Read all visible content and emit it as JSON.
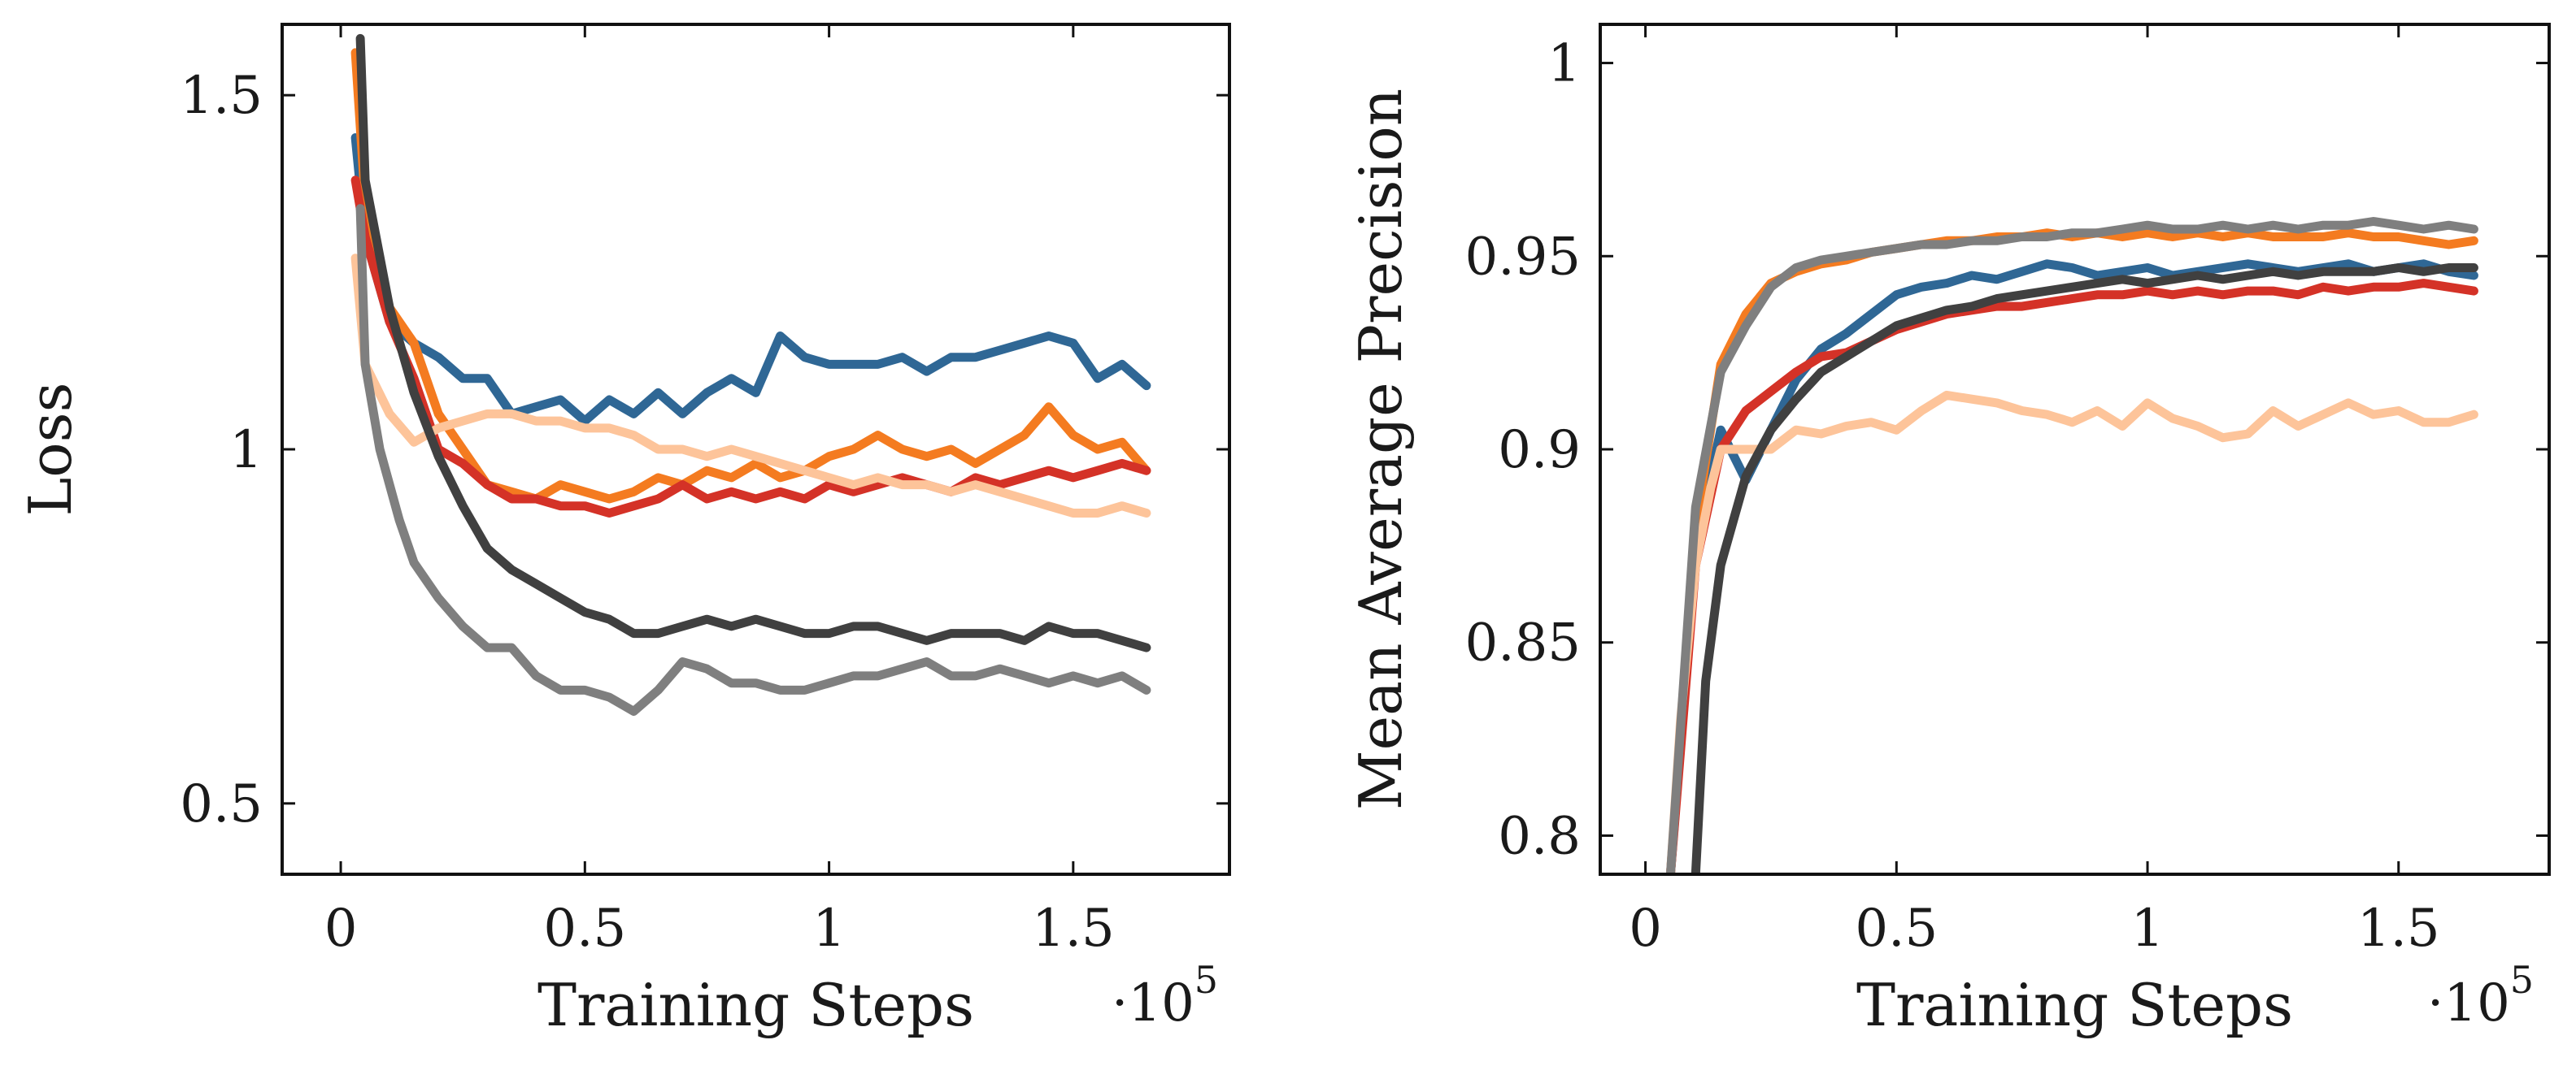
{
  "chart_data": [
    {
      "type": "line",
      "title": "",
      "xlabel": "Training Steps",
      "ylabel": "Loss",
      "x_exponent_label": "·10",
      "x_exponent_power": "5",
      "xlim": [
        -0.12,
        1.82
      ],
      "ylim": [
        0.4,
        1.6
      ],
      "xticks": [
        0,
        0.5,
        1,
        1.5
      ],
      "xtick_labels": [
        "0",
        "0.5",
        "1",
        "1.5"
      ],
      "yticks": [
        0.5,
        1,
        1.5
      ],
      "ytick_labels": [
        "0.5",
        "1",
        "1.5"
      ],
      "grid": false,
      "series": [
        {
          "color": "#2f6795",
          "x": [
            0.03,
            0.05,
            0.1,
            0.15,
            0.2,
            0.25,
            0.3,
            0.35,
            0.4,
            0.45,
            0.5,
            0.55,
            0.6,
            0.65,
            0.7,
            0.75,
            0.8,
            0.85,
            0.9,
            0.95,
            1.0,
            1.05,
            1.1,
            1.15,
            1.2,
            1.25,
            1.3,
            1.35,
            1.4,
            1.45,
            1.5,
            1.55,
            1.6,
            1.65
          ],
          "y": [
            1.44,
            1.3,
            1.18,
            1.15,
            1.13,
            1.1,
            1.1,
            1.05,
            1.06,
            1.07,
            1.04,
            1.07,
            1.05,
            1.08,
            1.05,
            1.08,
            1.1,
            1.08,
            1.16,
            1.13,
            1.12,
            1.12,
            1.12,
            1.13,
            1.11,
            1.13,
            1.13,
            1.14,
            1.15,
            1.16,
            1.15,
            1.1,
            1.12,
            1.09
          ]
        },
        {
          "color": "#f47b20",
          "x": [
            0.03,
            0.05,
            0.1,
            0.15,
            0.2,
            0.25,
            0.3,
            0.35,
            0.4,
            0.45,
            0.5,
            0.55,
            0.6,
            0.65,
            0.7,
            0.75,
            0.8,
            0.85,
            0.9,
            0.95,
            1.0,
            1.05,
            1.1,
            1.15,
            1.2,
            1.25,
            1.3,
            1.35,
            1.4,
            1.45,
            1.5,
            1.55,
            1.6,
            1.65
          ],
          "y": [
            1.56,
            1.35,
            1.2,
            1.15,
            1.05,
            1.0,
            0.95,
            0.94,
            0.93,
            0.95,
            0.94,
            0.93,
            0.94,
            0.96,
            0.95,
            0.97,
            0.96,
            0.98,
            0.96,
            0.97,
            0.99,
            1.0,
            1.02,
            1.0,
            0.99,
            1.0,
            0.98,
            1.0,
            1.02,
            1.06,
            1.02,
            1.0,
            1.01,
            0.97
          ]
        },
        {
          "color": "#d43227",
          "x": [
            0.03,
            0.05,
            0.1,
            0.15,
            0.2,
            0.25,
            0.3,
            0.35,
            0.4,
            0.45,
            0.5,
            0.55,
            0.6,
            0.65,
            0.7,
            0.75,
            0.8,
            0.85,
            0.9,
            0.95,
            1.0,
            1.05,
            1.1,
            1.15,
            1.2,
            1.25,
            1.3,
            1.35,
            1.4,
            1.45,
            1.5,
            1.55,
            1.6,
            1.65
          ],
          "y": [
            1.38,
            1.3,
            1.18,
            1.1,
            1.0,
            0.98,
            0.95,
            0.93,
            0.93,
            0.92,
            0.92,
            0.91,
            0.92,
            0.93,
            0.95,
            0.93,
            0.94,
            0.93,
            0.94,
            0.93,
            0.95,
            0.94,
            0.95,
            0.96,
            0.95,
            0.94,
            0.96,
            0.95,
            0.96,
            0.97,
            0.96,
            0.97,
            0.98,
            0.97
          ]
        },
        {
          "color": "#fdc49a",
          "x": [
            0.03,
            0.05,
            0.1,
            0.15,
            0.2,
            0.25,
            0.3,
            0.35,
            0.4,
            0.45,
            0.5,
            0.55,
            0.6,
            0.65,
            0.7,
            0.75,
            0.8,
            0.85,
            0.9,
            0.95,
            1.0,
            1.05,
            1.1,
            1.15,
            1.2,
            1.25,
            1.3,
            1.35,
            1.4,
            1.45,
            1.5,
            1.55,
            1.6,
            1.65
          ],
          "y": [
            1.27,
            1.12,
            1.05,
            1.01,
            1.03,
            1.04,
            1.05,
            1.05,
            1.04,
            1.04,
            1.03,
            1.03,
            1.02,
            1.0,
            1.0,
            0.99,
            1.0,
            0.99,
            0.98,
            0.97,
            0.96,
            0.95,
            0.96,
            0.95,
            0.95,
            0.94,
            0.95,
            0.94,
            0.93,
            0.92,
            0.91,
            0.91,
            0.92,
            0.91
          ]
        },
        {
          "color": "#404040",
          "x": [
            0.04,
            0.05,
            0.1,
            0.15,
            0.2,
            0.25,
            0.3,
            0.35,
            0.4,
            0.45,
            0.5,
            0.55,
            0.6,
            0.65,
            0.7,
            0.75,
            0.8,
            0.85,
            0.9,
            0.95,
            1.0,
            1.05,
            1.1,
            1.15,
            1.2,
            1.25,
            1.3,
            1.35,
            1.4,
            1.45,
            1.5,
            1.55,
            1.6,
            1.65
          ],
          "y": [
            1.58,
            1.38,
            1.2,
            1.08,
            0.99,
            0.92,
            0.86,
            0.83,
            0.81,
            0.79,
            0.77,
            0.76,
            0.74,
            0.74,
            0.75,
            0.76,
            0.75,
            0.76,
            0.75,
            0.74,
            0.74,
            0.75,
            0.75,
            0.74,
            0.73,
            0.74,
            0.74,
            0.74,
            0.73,
            0.75,
            0.74,
            0.74,
            0.73,
            0.72
          ]
        },
        {
          "color": "#7f7f7f",
          "x": [
            0.04,
            0.05,
            0.08,
            0.12,
            0.15,
            0.2,
            0.25,
            0.3,
            0.35,
            0.4,
            0.45,
            0.5,
            0.55,
            0.6,
            0.65,
            0.7,
            0.75,
            0.8,
            0.85,
            0.9,
            0.95,
            1.0,
            1.05,
            1.1,
            1.15,
            1.2,
            1.25,
            1.3,
            1.35,
            1.4,
            1.45,
            1.5,
            1.55,
            1.6,
            1.65
          ],
          "y": [
            1.34,
            1.12,
            1.0,
            0.9,
            0.84,
            0.79,
            0.75,
            0.72,
            0.72,
            0.68,
            0.66,
            0.66,
            0.65,
            0.63,
            0.66,
            0.7,
            0.69,
            0.67,
            0.67,
            0.66,
            0.66,
            0.67,
            0.68,
            0.68,
            0.69,
            0.7,
            0.68,
            0.68,
            0.69,
            0.68,
            0.67,
            0.68,
            0.67,
            0.68,
            0.66
          ]
        }
      ]
    },
    {
      "type": "line",
      "title": "",
      "xlabel": "Training Steps",
      "ylabel": "Mean Average Precision",
      "x_exponent_label": "·10",
      "x_exponent_power": "5",
      "xlim": [
        -0.09,
        1.8
      ],
      "ylim": [
        0.79,
        1.01
      ],
      "xticks": [
        0,
        0.5,
        1,
        1.5
      ],
      "xtick_labels": [
        "0",
        "0.5",
        "1",
        "1.5"
      ],
      "yticks": [
        0.8,
        0.85,
        0.9,
        0.95,
        1.0
      ],
      "ytick_labels": [
        "0.8",
        "0.85",
        "0.9",
        "0.95",
        "1"
      ],
      "grid": false,
      "series": [
        {
          "color": "#2f6795",
          "x": [
            0.05,
            0.1,
            0.15,
            0.2,
            0.25,
            0.3,
            0.35,
            0.4,
            0.45,
            0.5,
            0.55,
            0.6,
            0.65,
            0.7,
            0.75,
            0.8,
            0.85,
            0.9,
            0.95,
            1.0,
            1.05,
            1.1,
            1.15,
            1.2,
            1.25,
            1.3,
            1.35,
            1.4,
            1.45,
            1.5,
            1.55,
            1.6,
            1.65
          ],
          "y": [
            0.79,
            0.875,
            0.905,
            0.892,
            0.905,
            0.918,
            0.926,
            0.93,
            0.935,
            0.94,
            0.942,
            0.943,
            0.945,
            0.944,
            0.946,
            0.948,
            0.947,
            0.945,
            0.946,
            0.947,
            0.945,
            0.946,
            0.947,
            0.948,
            0.947,
            0.946,
            0.947,
            0.948,
            0.946,
            0.947,
            0.948,
            0.946,
            0.945
          ]
        },
        {
          "color": "#f47b20",
          "x": [
            0.05,
            0.1,
            0.15,
            0.2,
            0.25,
            0.3,
            0.35,
            0.4,
            0.45,
            0.5,
            0.55,
            0.6,
            0.65,
            0.7,
            0.75,
            0.8,
            0.85,
            0.9,
            0.95,
            1.0,
            1.05,
            1.1,
            1.15,
            1.2,
            1.25,
            1.3,
            1.35,
            1.4,
            1.45,
            1.5,
            1.55,
            1.6,
            1.65
          ],
          "y": [
            0.79,
            0.88,
            0.922,
            0.935,
            0.943,
            0.946,
            0.948,
            0.949,
            0.951,
            0.952,
            0.953,
            0.954,
            0.954,
            0.955,
            0.955,
            0.956,
            0.955,
            0.956,
            0.955,
            0.956,
            0.955,
            0.956,
            0.955,
            0.956,
            0.955,
            0.955,
            0.955,
            0.956,
            0.955,
            0.955,
            0.954,
            0.953,
            0.954
          ]
        },
        {
          "color": "#d43227",
          "x": [
            0.05,
            0.1,
            0.15,
            0.2,
            0.25,
            0.3,
            0.35,
            0.4,
            0.45,
            0.5,
            0.55,
            0.6,
            0.65,
            0.7,
            0.75,
            0.8,
            0.85,
            0.9,
            0.95,
            1.0,
            1.05,
            1.1,
            1.15,
            1.2,
            1.25,
            1.3,
            1.35,
            1.4,
            1.45,
            1.5,
            1.55,
            1.6,
            1.65
          ],
          "y": [
            0.79,
            0.87,
            0.9,
            0.91,
            0.915,
            0.92,
            0.924,
            0.925,
            0.928,
            0.931,
            0.933,
            0.935,
            0.936,
            0.937,
            0.937,
            0.938,
            0.939,
            0.94,
            0.94,
            0.941,
            0.94,
            0.941,
            0.94,
            0.941,
            0.941,
            0.94,
            0.942,
            0.941,
            0.942,
            0.942,
            0.943,
            0.942,
            0.941
          ]
        },
        {
          "color": "#fdc49a",
          "x": [
            0.05,
            0.07,
            0.1,
            0.13,
            0.15,
            0.2,
            0.25,
            0.3,
            0.35,
            0.4,
            0.45,
            0.5,
            0.55,
            0.6,
            0.65,
            0.7,
            0.75,
            0.8,
            0.85,
            0.9,
            0.95,
            1.0,
            1.05,
            1.1,
            1.15,
            1.2,
            1.25,
            1.3,
            1.35,
            1.4,
            1.45,
            1.5,
            1.55,
            1.6,
            1.65
          ],
          "y": [
            0.79,
            0.83,
            0.87,
            0.89,
            0.9,
            0.9,
            0.9,
            0.905,
            0.904,
            0.906,
            0.907,
            0.905,
            0.91,
            0.914,
            0.913,
            0.912,
            0.91,
            0.909,
            0.907,
            0.91,
            0.906,
            0.912,
            0.908,
            0.906,
            0.903,
            0.904,
            0.91,
            0.906,
            0.909,
            0.912,
            0.909,
            0.91,
            0.907,
            0.907,
            0.909
          ]
        },
        {
          "color": "#404040",
          "x": [
            0.1,
            0.12,
            0.15,
            0.2,
            0.25,
            0.3,
            0.35,
            0.4,
            0.45,
            0.5,
            0.55,
            0.6,
            0.65,
            0.7,
            0.75,
            0.8,
            0.85,
            0.9,
            0.95,
            1.0,
            1.05,
            1.1,
            1.15,
            1.2,
            1.25,
            1.3,
            1.35,
            1.4,
            1.45,
            1.5,
            1.55,
            1.6,
            1.65
          ],
          "y": [
            0.79,
            0.84,
            0.87,
            0.893,
            0.905,
            0.913,
            0.92,
            0.924,
            0.928,
            0.932,
            0.934,
            0.936,
            0.937,
            0.939,
            0.94,
            0.941,
            0.942,
            0.943,
            0.944,
            0.943,
            0.944,
            0.945,
            0.944,
            0.945,
            0.946,
            0.945,
            0.946,
            0.946,
            0.946,
            0.947,
            0.946,
            0.947,
            0.947
          ]
        },
        {
          "color": "#7f7f7f",
          "x": [
            0.05,
            0.1,
            0.15,
            0.2,
            0.25,
            0.3,
            0.35,
            0.4,
            0.45,
            0.5,
            0.55,
            0.6,
            0.65,
            0.7,
            0.75,
            0.8,
            0.85,
            0.9,
            0.95,
            1.0,
            1.05,
            1.1,
            1.15,
            1.2,
            1.25,
            1.3,
            1.35,
            1.4,
            1.45,
            1.5,
            1.55,
            1.6,
            1.65
          ],
          "y": [
            0.79,
            0.885,
            0.92,
            0.932,
            0.942,
            0.947,
            0.949,
            0.95,
            0.951,
            0.952,
            0.953,
            0.953,
            0.954,
            0.954,
            0.955,
            0.955,
            0.956,
            0.956,
            0.957,
            0.958,
            0.957,
            0.957,
            0.958,
            0.957,
            0.958,
            0.957,
            0.958,
            0.958,
            0.959,
            0.958,
            0.957,
            0.958,
            0.957
          ]
        }
      ]
    }
  ]
}
